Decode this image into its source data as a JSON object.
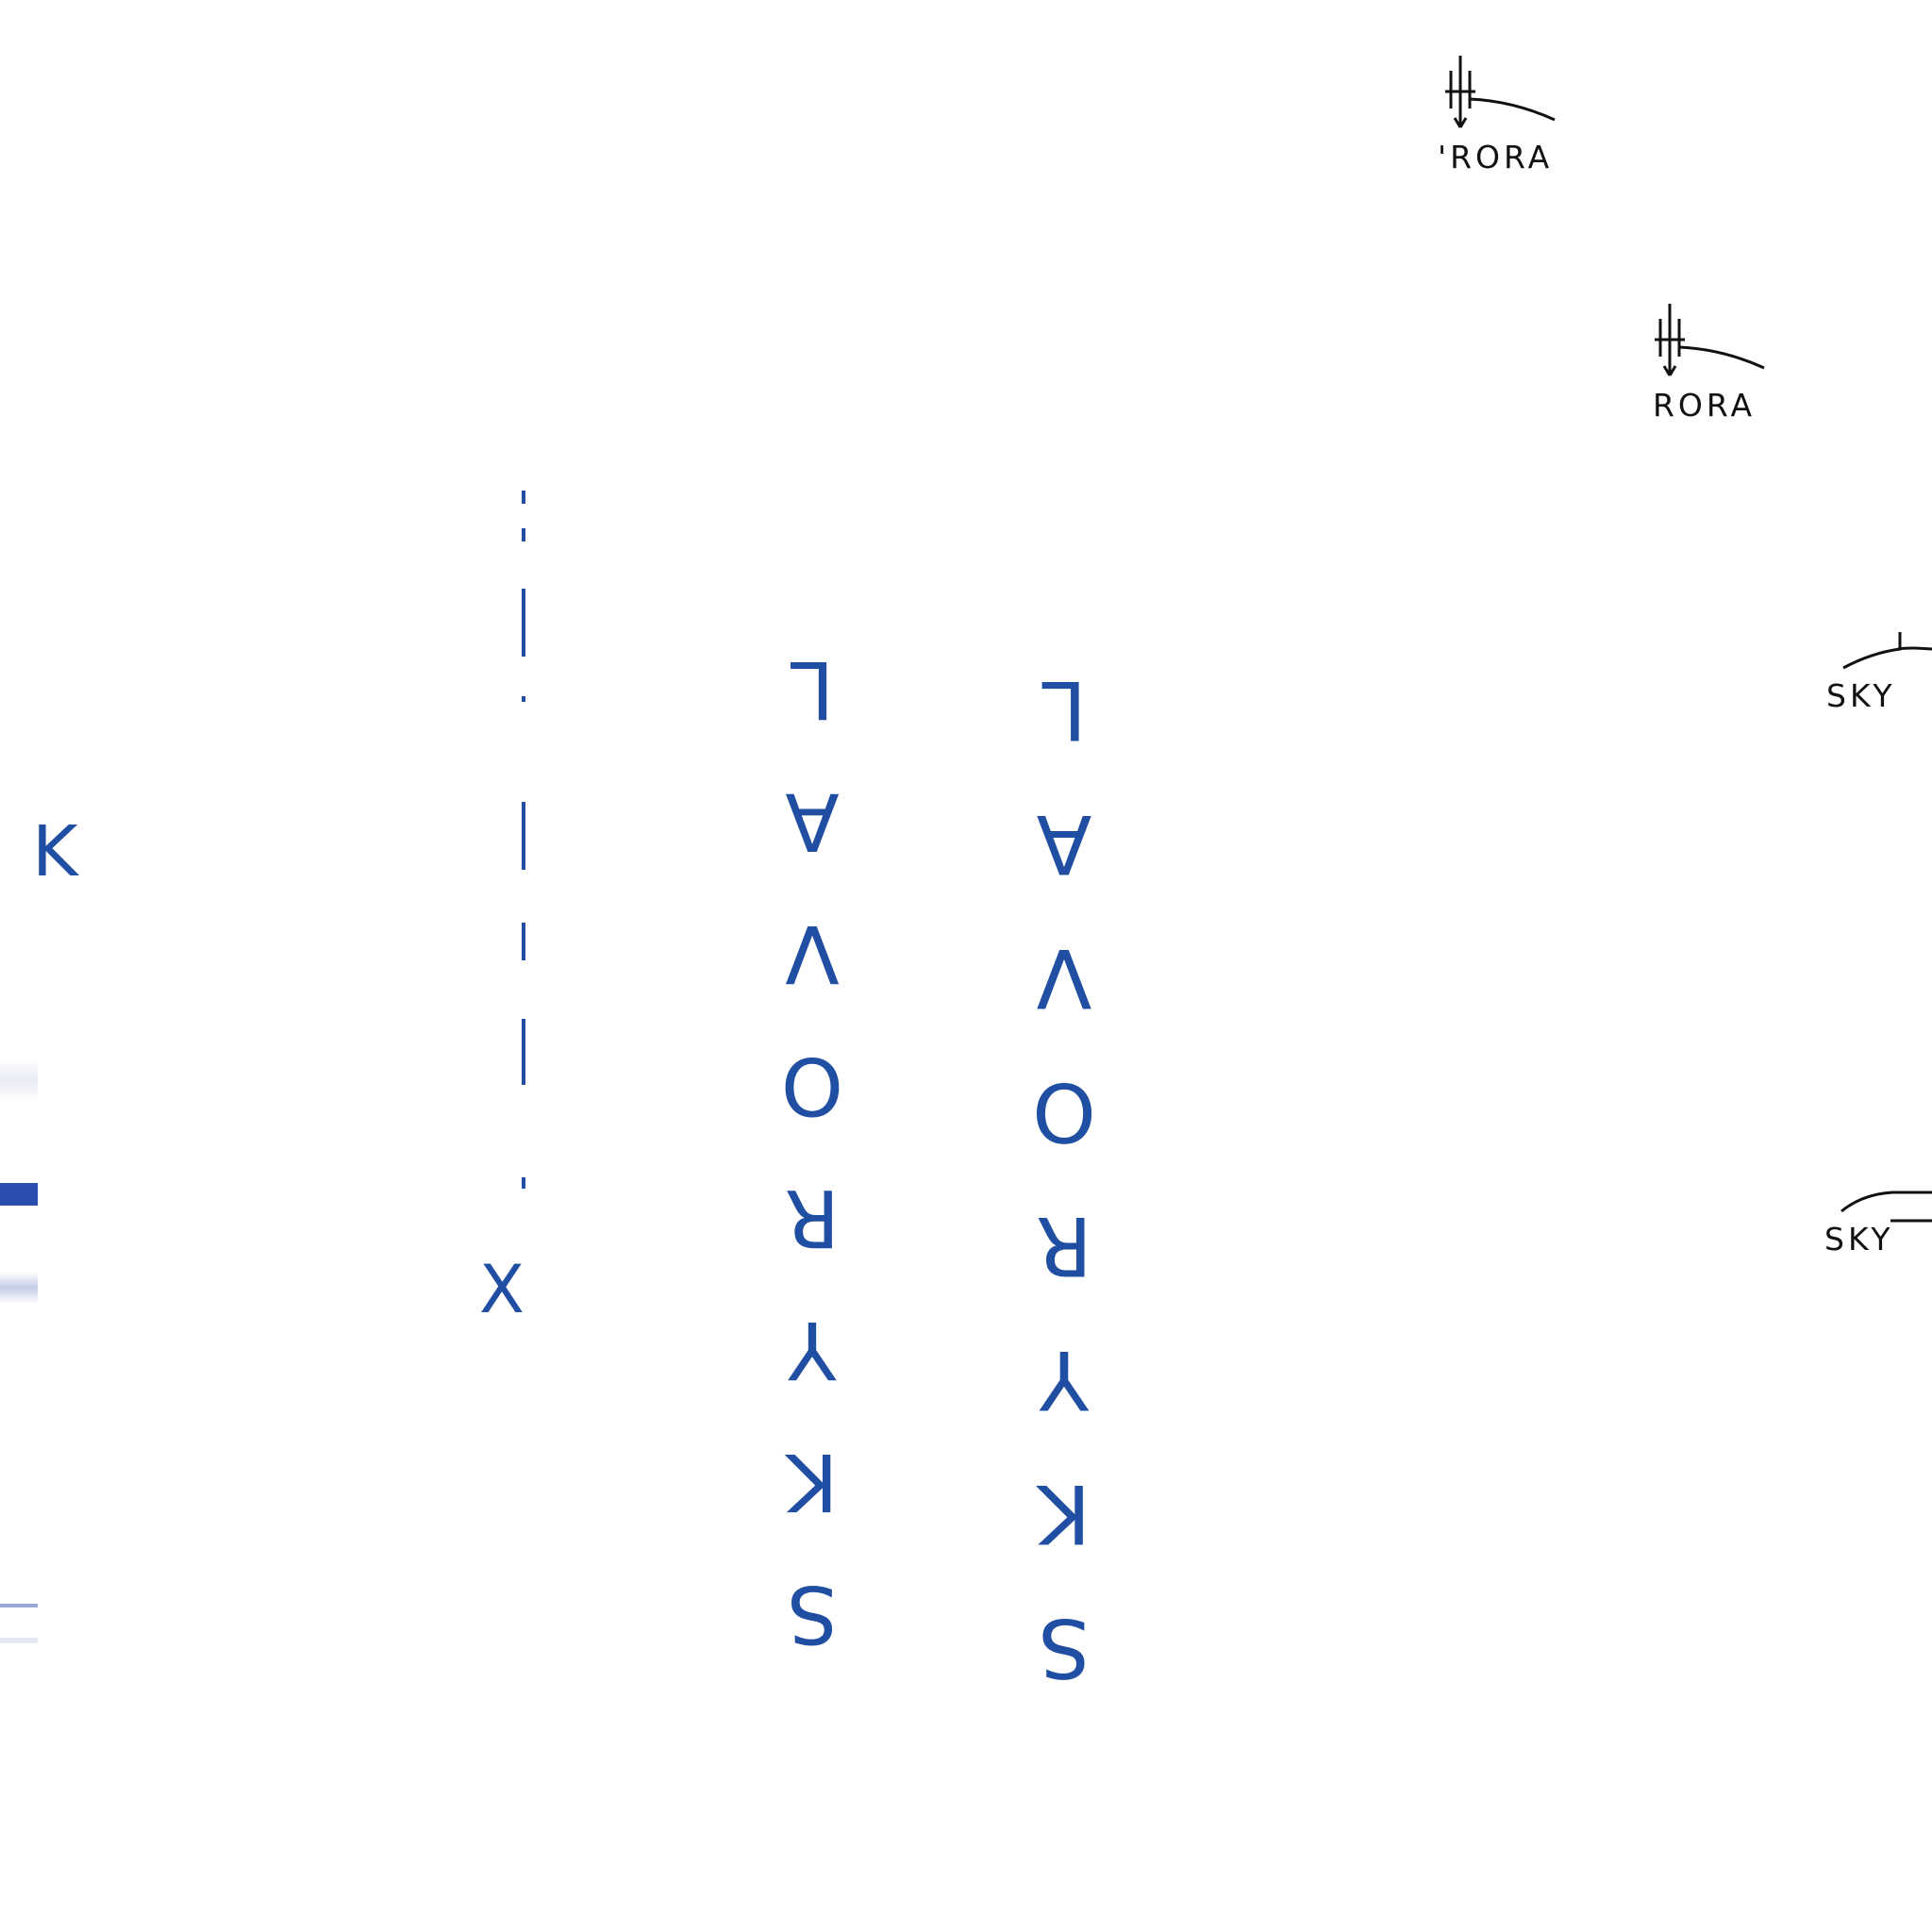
{
  "colors": {
    "blue": "#1f4ea3",
    "black": "#111111",
    "background": "#ffffff"
  },
  "vertical_words": [
    {
      "text": "SKYROVAL"
    },
    {
      "text": "SKYROVAL"
    }
  ],
  "fragments": {
    "left_x": "K",
    "mid_x": "X"
  },
  "logos": [
    {
      "text": "'RORA",
      "icon": "spire-icon"
    },
    {
      "text": "RORA",
      "icon": "spire-icon"
    },
    {
      "text": "SKY",
      "icon": "arc-icon"
    },
    {
      "text": "SKY",
      "icon": "arc-icon"
    }
  ]
}
